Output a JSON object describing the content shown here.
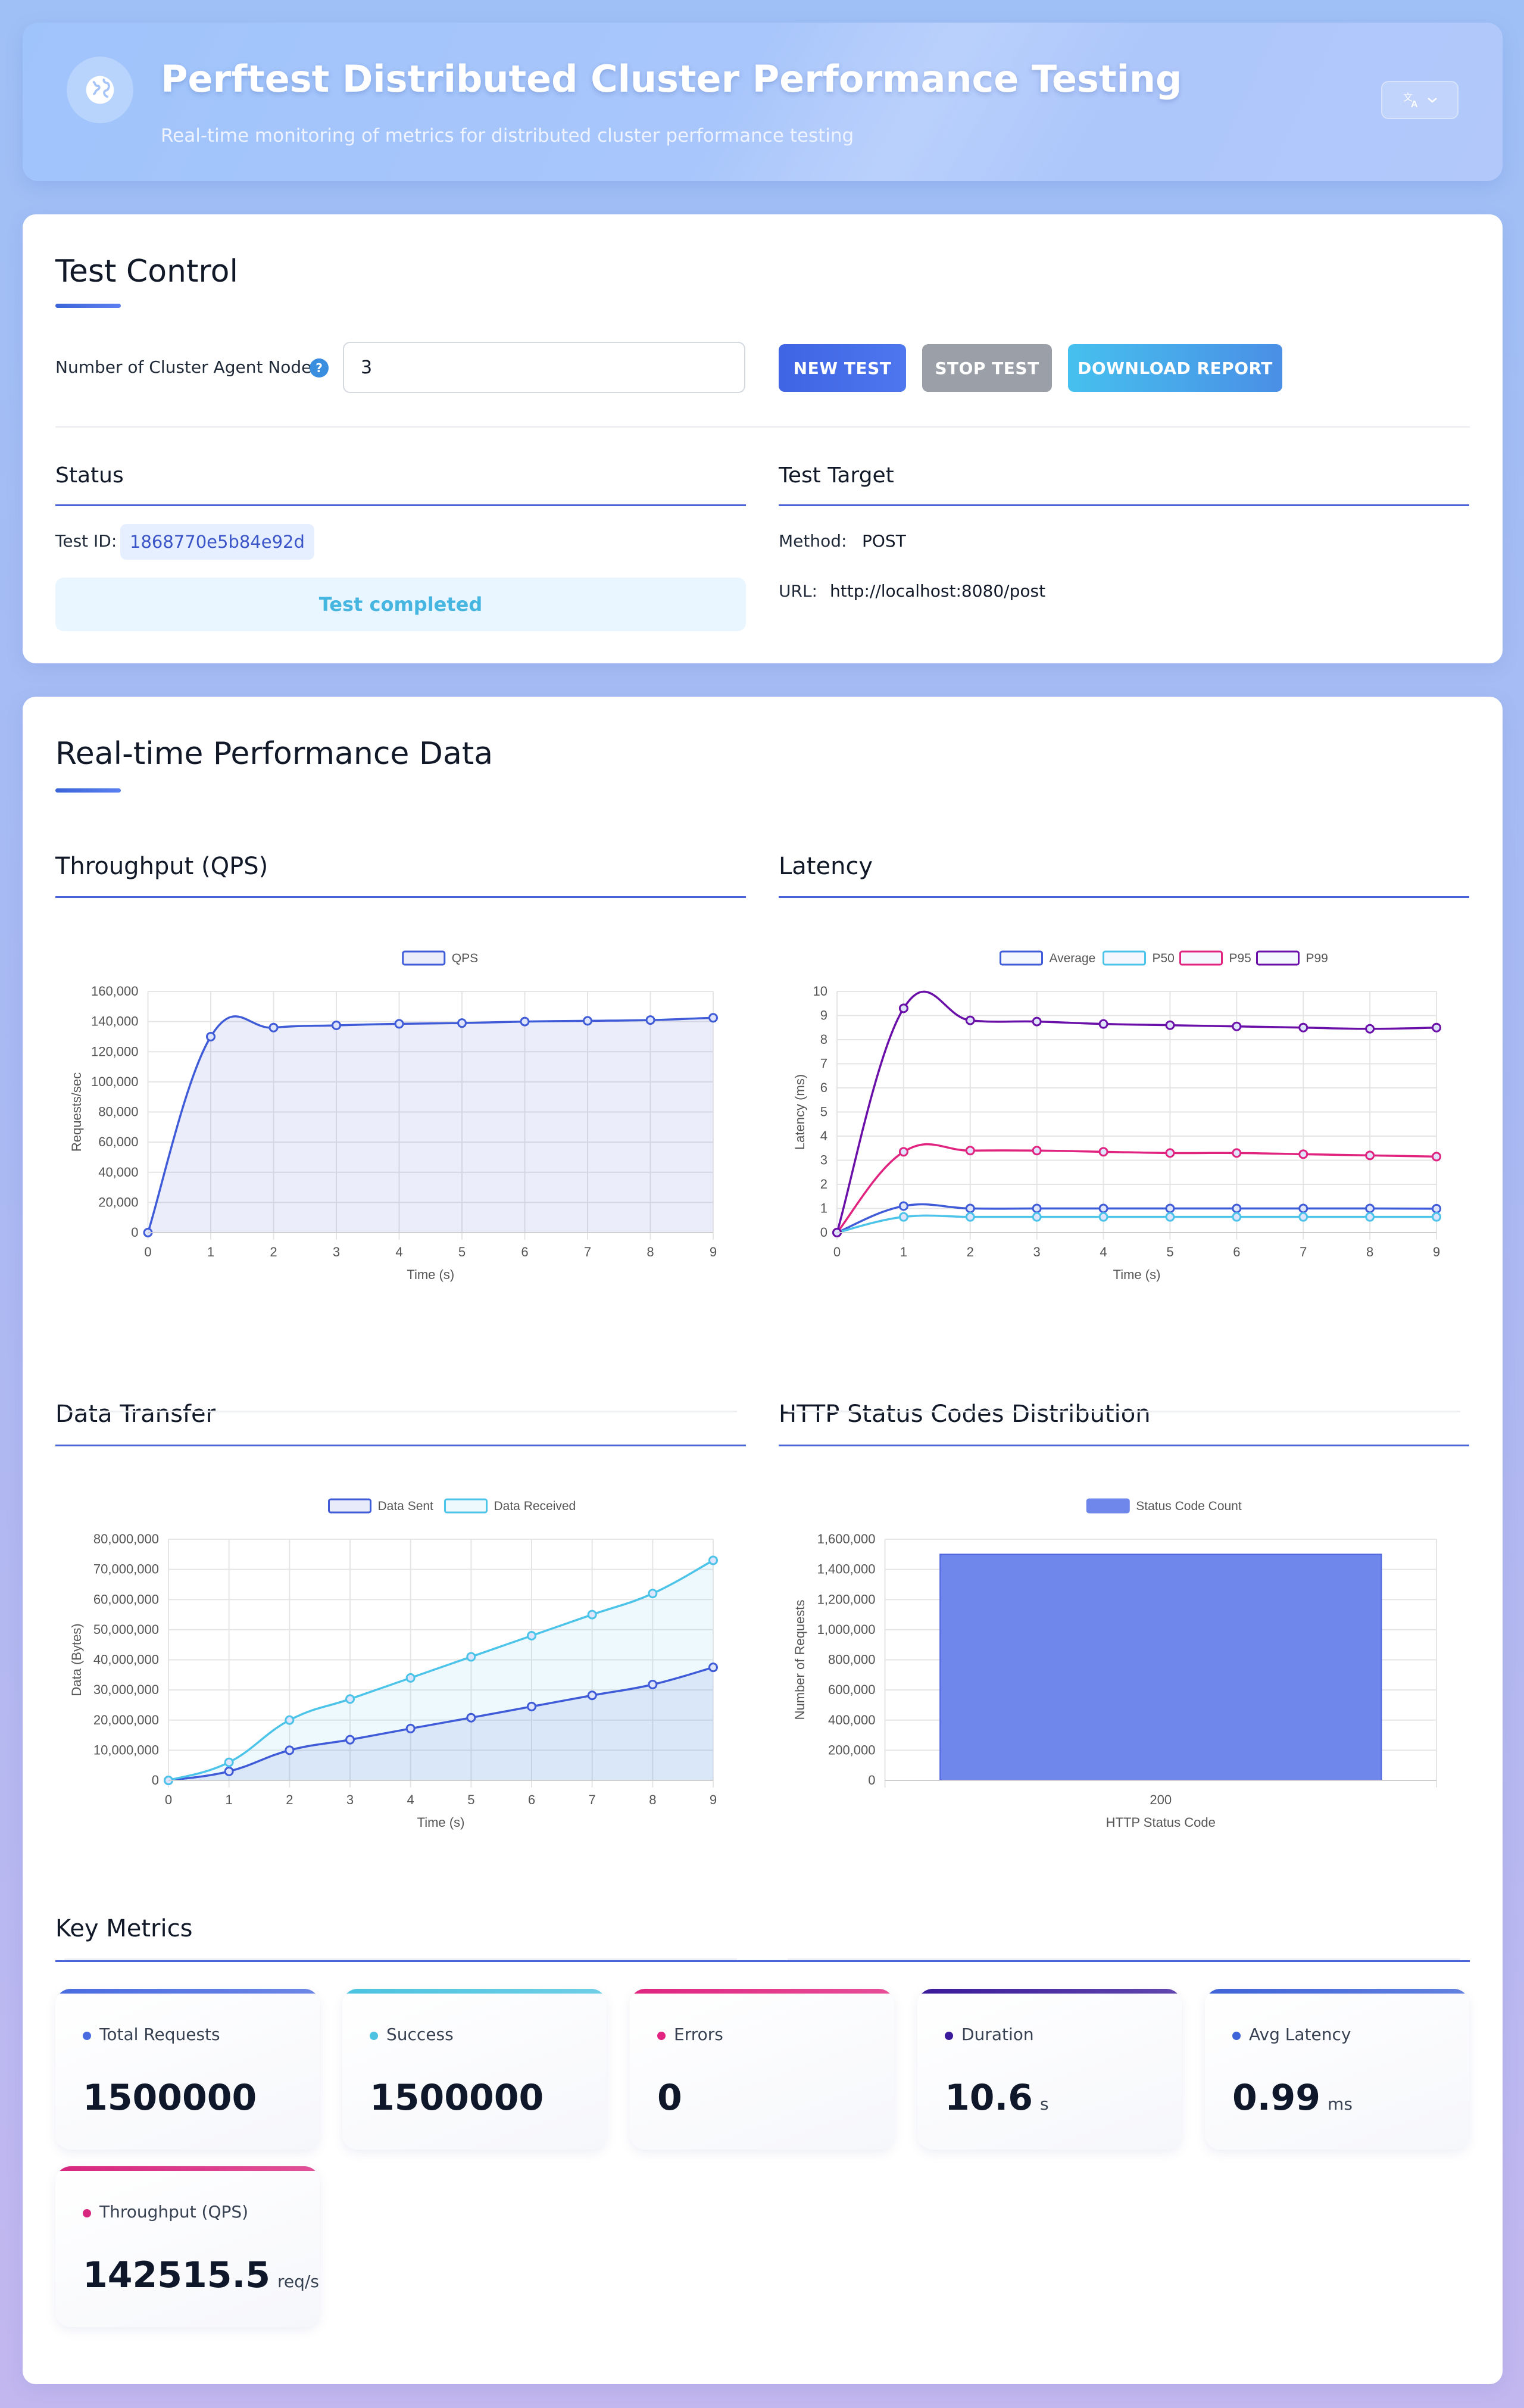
{
  "header": {
    "title": "Perftest Distributed Cluster Performance Testing",
    "subtitle": "Real-time monitoring of metrics for distributed cluster performance testing",
    "icon": "globe-icon",
    "lang_icon": "translate-icon"
  },
  "control": {
    "title": "Test Control",
    "nodes_label": "Number of Cluster Agent Nodes",
    "nodes_value": "3",
    "help_glyph": "?",
    "buttons": {
      "new": "NEW TEST",
      "stop": "STOP TEST",
      "download": "DOWNLOAD REPORT"
    },
    "status": {
      "title": "Status",
      "test_id_label": "Test ID:",
      "test_id": "1868770e5b84e92d",
      "message": "Test completed"
    },
    "target": {
      "title": "Test Target",
      "method_label": "Method:",
      "method": "POST",
      "url_label": "URL:",
      "url": "http://localhost:8080/post"
    }
  },
  "perf": {
    "title": "Real-time Performance Data",
    "sections": {
      "throughput": "Throughput (QPS)",
      "latency": "Latency",
      "transfer": "Data Transfer",
      "status": "HTTP Status Codes Distribution"
    }
  },
  "chart_data": [
    {
      "id": "throughput",
      "type": "line",
      "x": [
        0,
        1,
        2,
        3,
        4,
        5,
        6,
        7,
        8,
        9
      ],
      "xlabel": "Time (s)",
      "ylabel": "Requests/sec",
      "ylim": [
        0,
        160000
      ],
      "yticks": [
        0,
        20000,
        40000,
        60000,
        80000,
        100000,
        120000,
        140000,
        160000
      ],
      "legend": "top",
      "series": [
        {
          "name": "QPS",
          "color": "#3f5bd8",
          "fill": "rgba(90,110,220,0.12)",
          "values": [
            0,
            130000,
            136000,
            137500,
            138500,
            139000,
            140000,
            140500,
            141000,
            142500
          ]
        }
      ]
    },
    {
      "id": "latency",
      "type": "line",
      "x": [
        0,
        1,
        2,
        3,
        4,
        5,
        6,
        7,
        8,
        9
      ],
      "xlabel": "Time (s)",
      "ylabel": "Latency (ms)",
      "ylim": [
        0,
        10
      ],
      "yticks": [
        0,
        1,
        2,
        3,
        4,
        5,
        6,
        7,
        8,
        9,
        10
      ],
      "legend": "top",
      "series": [
        {
          "name": "Average",
          "color": "#3f5bd8",
          "values": [
            0,
            1.1,
            1.0,
            1.0,
            1.0,
            1.0,
            1.0,
            1.0,
            1.0,
            0.99
          ]
        },
        {
          "name": "P50",
          "color": "#4cc3e8",
          "values": [
            0,
            0.65,
            0.65,
            0.65,
            0.65,
            0.65,
            0.65,
            0.65,
            0.65,
            0.65
          ]
        },
        {
          "name": "P95",
          "color": "#e0237f",
          "values": [
            0,
            3.35,
            3.4,
            3.4,
            3.35,
            3.3,
            3.3,
            3.25,
            3.2,
            3.15
          ]
        },
        {
          "name": "P99",
          "color": "#6a0fa8",
          "values": [
            0,
            9.3,
            8.8,
            8.75,
            8.65,
            8.6,
            8.55,
            8.5,
            8.45,
            8.5
          ]
        }
      ]
    },
    {
      "id": "transfer",
      "type": "area",
      "x": [
        0,
        1,
        2,
        3,
        4,
        5,
        6,
        7,
        8,
        9
      ],
      "xlabel": "Time (s)",
      "ylabel": "Data (Bytes)",
      "ylim": [
        0,
        80000000
      ],
      "yticks": [
        0,
        10000000,
        20000000,
        30000000,
        40000000,
        50000000,
        60000000,
        70000000,
        80000000
      ],
      "legend": "top",
      "series": [
        {
          "name": "Data Sent",
          "color": "#3f5bd8",
          "fill": "rgba(90,110,220,0.14)",
          "values": [
            0,
            3000000,
            10000000,
            13500000,
            17200000,
            20800000,
            24500000,
            28200000,
            31800000,
            37500000
          ]
        },
        {
          "name": "Data Received",
          "color": "#4cc3e8",
          "fill": "rgba(90,200,235,0.10)",
          "values": [
            0,
            6000000,
            20000000,
            27000000,
            34000000,
            41000000,
            48000000,
            55000000,
            62000000,
            73000000
          ]
        }
      ]
    },
    {
      "id": "status_codes",
      "type": "bar",
      "categories": [
        "200"
      ],
      "xlabel": "HTTP Status Code",
      "ylabel": "Number of Requests",
      "ylim": [
        0,
        1600000
      ],
      "yticks": [
        0,
        200000,
        400000,
        600000,
        800000,
        1000000,
        1200000,
        1400000,
        1600000
      ],
      "legend": "top",
      "series": [
        {
          "name": "Status Code Count",
          "color": "#6f86ea",
          "values": [
            1500000
          ]
        }
      ]
    }
  ],
  "metrics": {
    "title": "Key Metrics",
    "items": [
      {
        "label": "Total Requests",
        "value": "1500000",
        "unit": "",
        "color": "#4a6ae0"
      },
      {
        "label": "Success",
        "value": "1500000",
        "unit": "",
        "color": "#4cc3e0"
      },
      {
        "label": "Errors",
        "value": "0",
        "unit": "",
        "color": "#e0247f"
      },
      {
        "label": "Duration",
        "value": "10.6",
        "unit": "s",
        "color": "#3a1a9a"
      },
      {
        "label": "Avg Latency",
        "value": "0.99",
        "unit": "ms",
        "color": "#3f63d8"
      },
      {
        "label": "Throughput (QPS)",
        "value": "142515.5",
        "unit": "req/s",
        "color": "#d8277f"
      }
    ]
  }
}
